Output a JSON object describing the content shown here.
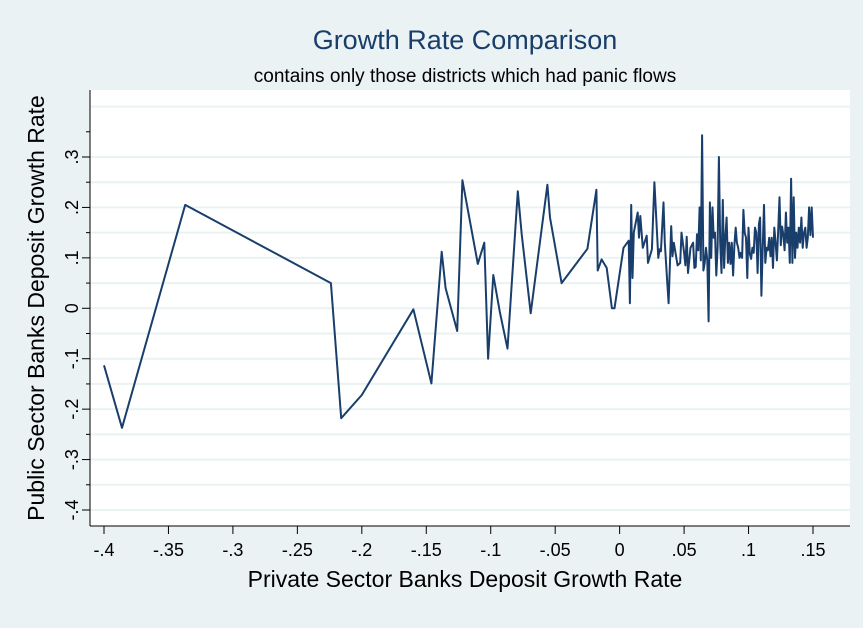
{
  "chart_data": {
    "type": "line",
    "title": "Growth Rate Comparison",
    "subtitle": "contains only those districts which had panic flows",
    "xlabel": "Private Sector Banks Deposit Growth Rate",
    "ylabel": "Public Sector Banks Deposit Growth Rate",
    "xlim": [
      -0.4,
      0.15
    ],
    "ylim": [
      -0.4,
      0.3
    ],
    "x_ticks": [
      -0.4,
      -0.35,
      -0.3,
      -0.25,
      -0.2,
      -0.15,
      -0.1,
      -0.05,
      0,
      0.05,
      0.1,
      0.15
    ],
    "x_tick_labels": [
      "-.4",
      "-.35",
      "-.3",
      "-.25",
      "-.2",
      "-.15",
      "-.1",
      "-.05",
      "0",
      ".05",
      ".1",
      ".15"
    ],
    "y_ticks": [
      -0.4,
      -0.3,
      -0.2,
      -0.1,
      0,
      0.1,
      0.2,
      0.3
    ],
    "y_tick_labels": [
      "-.4",
      "-.3",
      "-.2",
      "-.1",
      "0",
      ".1",
      ".2",
      ".3"
    ],
    "grid": true,
    "line_color": "#1a3e6b",
    "background_color": "#eaf2f3",
    "plot_background_color": "#ffffff",
    "grid_color": "#eaf2f3",
    "series": [
      {
        "x": [
          -0.4,
          -0.386,
          -0.337,
          -0.224,
          -0.216,
          -0.2,
          -0.16,
          -0.146,
          -0.138,
          -0.135,
          -0.126,
          -0.122,
          -0.11,
          -0.105,
          -0.102,
          -0.098,
          -0.093,
          -0.087,
          -0.079,
          -0.076,
          -0.069,
          -0.056,
          -0.054,
          -0.045,
          -0.025,
          -0.018,
          -0.017,
          -0.014,
          -0.01,
          -0.006,
          -0.004,
          0.003,
          0.007,
          0.008,
          0.009,
          0.01,
          0.011,
          0.014,
          0.015,
          0.016,
          0.018,
          0.021,
          0.022,
          0.025,
          0.027,
          0.03,
          0.031,
          0.032,
          0.034,
          0.035,
          0.037,
          0.038,
          0.04,
          0.041,
          0.042,
          0.045,
          0.047,
          0.048,
          0.05,
          0.051,
          0.052,
          0.053,
          0.055,
          0.057,
          0.058,
          0.059,
          0.06,
          0.061,
          0.062,
          0.063,
          0.064,
          0.065,
          0.066,
          0.067,
          0.068,
          0.069,
          0.07,
          0.071,
          0.072,
          0.073,
          0.074,
          0.075,
          0.076,
          0.077,
          0.078,
          0.079,
          0.08,
          0.081,
          0.082,
          0.083,
          0.084,
          0.085,
          0.086,
          0.087,
          0.088,
          0.089,
          0.09,
          0.091,
          0.092,
          0.093,
          0.094,
          0.095,
          0.096,
          0.097,
          0.098,
          0.099,
          0.1,
          0.101,
          0.102,
          0.103,
          0.104,
          0.105,
          0.106,
          0.107,
          0.108,
          0.109,
          0.11,
          0.111,
          0.112,
          0.113,
          0.114,
          0.115,
          0.116,
          0.117,
          0.118,
          0.119,
          0.12,
          0.121,
          0.122,
          0.123,
          0.124,
          0.125,
          0.126,
          0.127,
          0.128,
          0.129,
          0.13,
          0.131,
          0.132,
          0.133,
          0.134,
          0.135,
          0.136,
          0.137,
          0.138,
          0.139,
          0.14,
          0.141,
          0.142,
          0.143,
          0.144,
          0.145,
          0.146,
          0.147,
          0.148,
          0.149,
          0.15
        ],
        "y": [
          -0.113,
          -0.237,
          0.205,
          0.05,
          -0.218,
          -0.172,
          -0.002,
          -0.149,
          0.112,
          0.04,
          -0.045,
          0.254,
          0.088,
          0.13,
          -0.1,
          0.066,
          -0.007,
          -0.08,
          0.232,
          0.147,
          -0.01,
          0.245,
          0.18,
          0.05,
          0.118,
          0.235,
          0.075,
          0.097,
          0.08,
          0.0,
          0.0,
          0.12,
          0.134,
          0.01,
          0.205,
          0.06,
          0.15,
          0.19,
          0.14,
          0.183,
          0.12,
          0.144,
          0.09,
          0.117,
          0.25,
          0.1,
          0.117,
          0.113,
          0.21,
          0.13,
          0.05,
          0.01,
          0.163,
          0.103,
          0.13,
          0.085,
          0.09,
          0.15,
          0.11,
          0.085,
          0.142,
          0.07,
          0.12,
          0.13,
          0.08,
          0.082,
          0.147,
          0.115,
          0.2,
          0.095,
          0.343,
          0.075,
          0.09,
          0.12,
          0.095,
          -0.026,
          0.21,
          0.1,
          0.2,
          0.14,
          0.15,
          0.065,
          0.12,
          0.3,
          0.13,
          0.07,
          0.215,
          0.08,
          0.14,
          0.18,
          0.09,
          0.13,
          0.088,
          0.13,
          0.065,
          0.125,
          0.16,
          0.13,
          0.12,
          0.1,
          0.11,
          0.1,
          0.195,
          0.15,
          0.14,
          0.06,
          0.16,
          0.108,
          0.098,
          0.12,
          0.11,
          0.16,
          0.15,
          0.07,
          0.167,
          0.18,
          0.025,
          0.12,
          0.205,
          0.09,
          0.12,
          0.115,
          0.14,
          0.103,
          0.14,
          0.08,
          0.16,
          0.13,
          0.095,
          0.155,
          0.22,
          0.125,
          0.162,
          0.145,
          0.115,
          0.19,
          0.13,
          0.16,
          0.09,
          0.257,
          0.09,
          0.22,
          0.1,
          0.15,
          0.12,
          0.16,
          0.13,
          0.18,
          0.12,
          0.15,
          0.16,
          0.12,
          0.14,
          0.2,
          0.145,
          0.2,
          0.14
        ]
      }
    ]
  }
}
